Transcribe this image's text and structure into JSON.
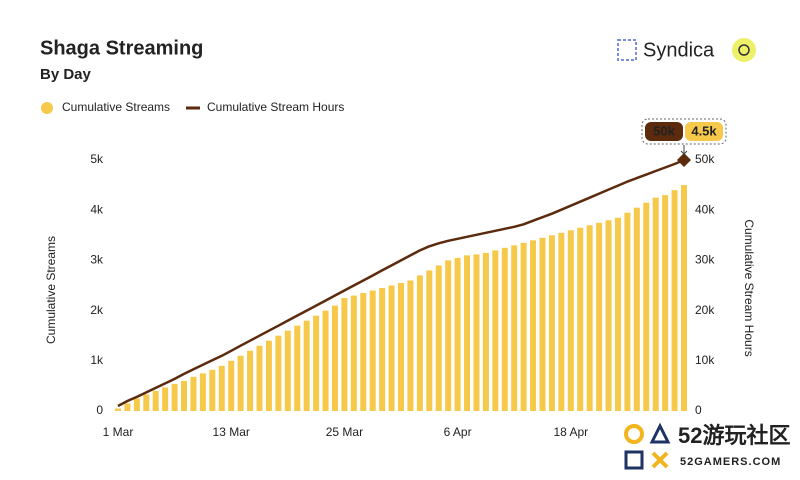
{
  "chart_data": {
    "type": "bar_line",
    "title": "Shaga Streaming",
    "subtitle": "By Day",
    "ylabel": "Cumulative Streams",
    "y2label": "Cumulative Stream Hours",
    "categories": [
      "1 Mar",
      null,
      null,
      null,
      null,
      null,
      null,
      null,
      null,
      null,
      null,
      null,
      "13 Mar",
      null,
      null,
      null,
      null,
      null,
      null,
      null,
      null,
      null,
      null,
      null,
      "25 Mar",
      null,
      null,
      null,
      null,
      null,
      null,
      null,
      null,
      null,
      null,
      null,
      "6 Apr",
      null,
      null,
      null,
      null,
      null,
      null,
      null,
      null,
      null,
      null,
      null,
      "18 Apr",
      null,
      null,
      null,
      null,
      null,
      null,
      null,
      null,
      null,
      null,
      null,
      null
    ],
    "series": [
      {
        "name": "Cumulative Streams",
        "color": "#f7c94b",
        "kind": "bar",
        "axis": "y",
        "values": [
          50,
          150,
          250,
          330,
          400,
          470,
          540,
          600,
          680,
          750,
          820,
          900,
          1000,
          1100,
          1200,
          1300,
          1400,
          1500,
          1600,
          1700,
          1800,
          1900,
          2000,
          2100,
          2250,
          2300,
          2350,
          2400,
          2450,
          2500,
          2550,
          2600,
          2700,
          2800,
          2900,
          3000,
          3050,
          3100,
          3120,
          3150,
          3200,
          3250,
          3300,
          3350,
          3400,
          3450,
          3500,
          3550,
          3600,
          3650,
          3700,
          3750,
          3800,
          3850,
          3950,
          4050,
          4150,
          4250,
          4300,
          4400,
          4500
        ]
      },
      {
        "name": "Cumulative Stream Hours",
        "color": "#5c2a0c",
        "kind": "line",
        "axis": "y2",
        "values": [
          1000,
          2000,
          2800,
          3700,
          4600,
          5500,
          6400,
          7400,
          8300,
          9200,
          10100,
          11000,
          12000,
          13000,
          14000,
          15000,
          16000,
          17000,
          18000,
          19000,
          20000,
          21000,
          22000,
          23000,
          24000,
          25000,
          26000,
          27000,
          28000,
          29000,
          30000,
          31000,
          32000,
          32800,
          33400,
          33900,
          34300,
          34700,
          35100,
          35500,
          35900,
          36300,
          36700,
          37200,
          37900,
          38600,
          39300,
          40100,
          40900,
          41700,
          42500,
          43300,
          44100,
          44900,
          45700,
          46400,
          47100,
          47800,
          48500,
          49200,
          50000
        ]
      }
    ],
    "ylim": [
      0,
      5000
    ],
    "yticks": [
      0,
      {
        "value": 1000,
        "label": "1k"
      },
      {
        "value": 2000,
        "label": "2k"
      },
      {
        "value": 3000,
        "label": "3k"
      },
      {
        "value": 4000,
        "label": "4k"
      },
      {
        "value": 5000,
        "label": "5k"
      }
    ],
    "y2lim": [
      0,
      50000
    ],
    "y2ticks": [
      0,
      {
        "value": 10000,
        "label": "10k"
      },
      {
        "value": 20000,
        "label": "20k"
      },
      {
        "value": 30000,
        "label": "30k"
      },
      {
        "value": 40000,
        "label": "40k"
      },
      {
        "value": 50000,
        "label": "50k"
      }
    ],
    "grid": false,
    "legend": "top-left",
    "tooltip": [
      "50k",
      "4.5k"
    ]
  },
  "brand": "Syndica",
  "watermark": {
    "big": "52游玩社区",
    "small": "52GAMERS.COM"
  }
}
